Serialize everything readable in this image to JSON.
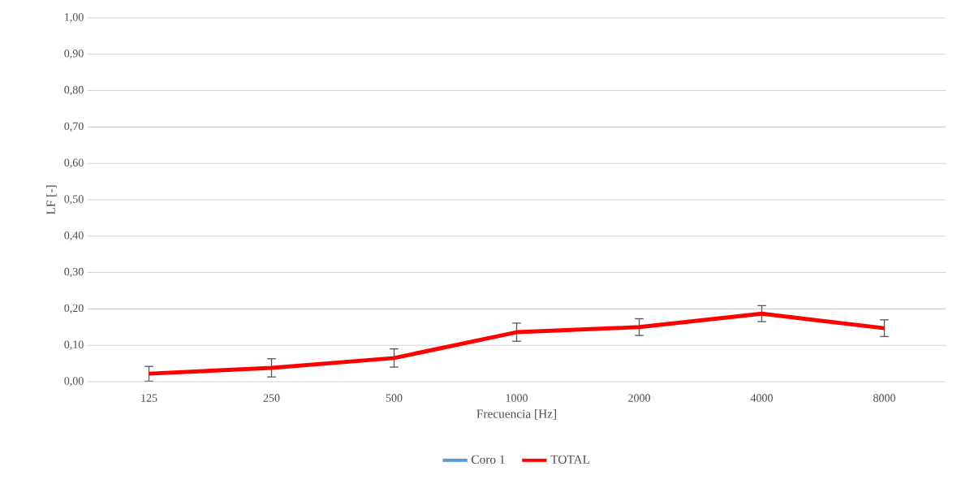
{
  "chart_data": {
    "type": "line",
    "xlabel": "Frecuencia [Hz]",
    "ylabel": "LF [-]",
    "categories": [
      "125",
      "250",
      "500",
      "1000",
      "2000",
      "4000",
      "8000"
    ],
    "series": [
      {
        "name": "Coro 1",
        "color": "#5b9bd5",
        "values": [
          null,
          null,
          null,
          null,
          null,
          null,
          null
        ]
      },
      {
        "name": "TOTAL",
        "color": "#ff0000",
        "values": [
          0.022,
          0.038,
          0.065,
          0.136,
          0.15,
          0.187,
          0.147
        ],
        "errors": [
          0.02,
          0.025,
          0.025,
          0.025,
          0.023,
          0.022,
          0.023
        ]
      }
    ],
    "ylim": [
      0,
      1
    ],
    "yticks": [
      {
        "value": 0,
        "label": "0,00"
      },
      {
        "value": 0.1,
        "label": "0,10"
      },
      {
        "value": 0.2,
        "label": "0,20"
      },
      {
        "value": 0.3,
        "label": "0,30"
      },
      {
        "value": 0.4,
        "label": "0,40"
      },
      {
        "value": 0.5,
        "label": "0,50"
      },
      {
        "value": 0.6,
        "label": "0,60"
      },
      {
        "value": 0.7,
        "label": "0,70"
      },
      {
        "value": 0.8,
        "label": "0,80"
      },
      {
        "value": 0.9,
        "label": "0,90"
      },
      {
        "value": 1,
        "label": "1,00"
      }
    ],
    "grid": "y",
    "legend": "bottom",
    "marker": "none",
    "line_style": "solid"
  }
}
